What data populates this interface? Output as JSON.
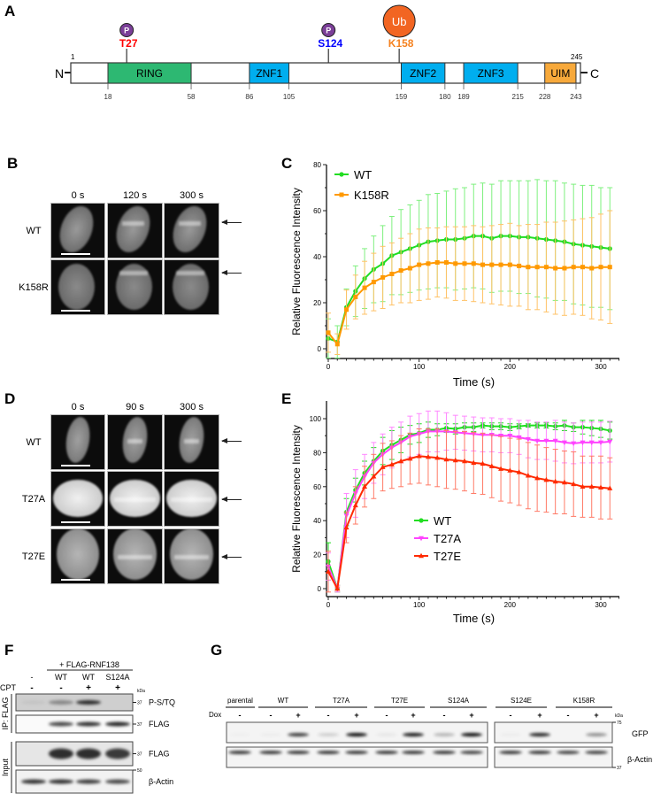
{
  "panel_labels": {
    "a": "A",
    "b": "B",
    "c": "C",
    "d": "D",
    "e": "E",
    "f": "F",
    "g": "G"
  },
  "domain_diagram": {
    "n_label": "N",
    "c_label": "C",
    "start_label": "1",
    "end_label": "245",
    "length": 245,
    "domains": [
      {
        "name": "RING",
        "start": 18,
        "end": 58,
        "color": "#2db872"
      },
      {
        "name": "ZNF1",
        "start": 86,
        "end": 105,
        "color": "#00aeef"
      },
      {
        "name": "ZNF2",
        "start": 159,
        "end": 180,
        "color": "#00aeef"
      },
      {
        "name": "ZNF3",
        "start": 189,
        "end": 215,
        "color": "#00aeef"
      },
      {
        "name": "UIM",
        "start": 228,
        "end": 243,
        "color": "#f7a93b"
      }
    ],
    "boundary_labels": [
      "18",
      "58",
      "86",
      "105",
      "159",
      "180",
      "189",
      "215",
      "228",
      "243"
    ],
    "boundary_values": [
      18,
      58,
      86,
      105,
      159,
      180,
      189,
      215,
      228,
      243
    ],
    "sites": [
      {
        "label": "T27",
        "residue": 27,
        "color": "#ff0000",
        "mod": "P",
        "mod_color": "#7b3f98"
      },
      {
        "label": "S124",
        "residue": 124,
        "color": "#0000ff",
        "mod": "P",
        "mod_color": "#7b3f98"
      },
      {
        "label": "K158",
        "residue": 158,
        "color": "#f58220",
        "mod": "Ub",
        "mod_color": "#f26522"
      }
    ]
  },
  "panel_b": {
    "headers": [
      "0 s",
      "120 s",
      "300 s"
    ],
    "rows": [
      "WT",
      "K158R"
    ]
  },
  "panel_d": {
    "headers": [
      "0 s",
      "90 s",
      "300 s"
    ],
    "rows": [
      "WT",
      "T27A",
      "T27E"
    ]
  },
  "chart_data": [
    {
      "panel": "C",
      "type": "line",
      "xlabel": "Time (s)",
      "ylabel": "Relative Fluorescence Intensity",
      "xlim": [
        0,
        310
      ],
      "ylim": [
        -4,
        80
      ],
      "xticks": [
        "0",
        "100",
        "200",
        "300"
      ],
      "xtick_values": [
        0,
        100,
        200,
        300
      ],
      "yticks": [
        "0",
        "20",
        "40",
        "60",
        "80"
      ],
      "ytick_values": [
        0,
        20,
        40,
        60,
        80
      ],
      "legend": "top-left",
      "x": [
        0,
        10,
        20,
        30,
        40,
        50,
        60,
        70,
        80,
        90,
        100,
        110,
        120,
        130,
        140,
        150,
        160,
        170,
        180,
        190,
        200,
        210,
        220,
        230,
        240,
        250,
        260,
        270,
        280,
        290,
        300,
        310
      ],
      "series": [
        {
          "name": "WT",
          "color": "#22dd22",
          "err_color": "#7ef07e",
          "marker": "circle",
          "values": [
            4.5,
            3,
            18,
            25,
            30.5,
            34.5,
            37,
            40.5,
            42,
            43.5,
            45,
            46.5,
            47,
            47.5,
            47.5,
            48,
            49,
            49,
            48,
            49,
            49,
            48.5,
            48.5,
            48,
            47.5,
            47,
            46.5,
            45.5,
            45,
            44.5,
            44,
            43.5
          ],
          "sd": [
            8.5,
            7,
            8,
            11,
            13,
            14.5,
            16.5,
            17,
            18.5,
            19,
            19.5,
            20.5,
            20.5,
            21,
            22,
            22,
            22.5,
            23,
            23.5,
            24,
            24,
            24.5,
            24.5,
            25.5,
            25.5,
            26,
            25.5,
            26,
            26,
            26.5,
            26,
            26.5
          ]
        },
        {
          "name": "K158R",
          "color": "#ff9900",
          "err_color": "#ffc266",
          "marker": "square",
          "values": [
            7,
            2,
            17,
            22.5,
            26.5,
            29,
            31,
            32.5,
            34,
            35,
            36.5,
            37,
            37.5,
            37.5,
            37,
            37,
            37,
            36.5,
            36.5,
            36.5,
            36.5,
            36,
            35.5,
            35.5,
            35.5,
            35,
            35,
            35.5,
            35.5,
            35,
            35.5,
            35.5
          ],
          "sd": [
            8.5,
            4.5,
            8.5,
            9.5,
            11.5,
            12.5,
            13.5,
            13.5,
            14,
            15,
            15.5,
            15.5,
            15,
            15.5,
            16,
            16,
            16.5,
            16.5,
            17,
            17.5,
            18,
            17.5,
            18.5,
            18.5,
            19.5,
            20,
            20.5,
            20.5,
            21,
            22,
            23,
            24.5
          ]
        }
      ]
    },
    {
      "panel": "E",
      "type": "line",
      "xlabel": "Time (s)",
      "ylabel": "Relative Fluorescence Intensity",
      "xlim": [
        0,
        310
      ],
      "ylim": [
        -4,
        110
      ],
      "xticks": [
        "0",
        "100",
        "200",
        "300"
      ],
      "xtick_values": [
        0,
        100,
        200,
        300
      ],
      "yticks": [
        "0",
        "20",
        "40",
        "60",
        "80",
        "100"
      ],
      "ytick_values": [
        0,
        20,
        40,
        60,
        80,
        100
      ],
      "legend": "center",
      "x": [
        0,
        10,
        20,
        30,
        40,
        50,
        60,
        70,
        80,
        90,
        100,
        110,
        120,
        130,
        140,
        150,
        160,
        170,
        180,
        190,
        200,
        210,
        220,
        230,
        240,
        250,
        260,
        270,
        280,
        290,
        300,
        310
      ],
      "series": [
        {
          "name": "WT",
          "color": "#22dd22",
          "err_color": "#22dd22",
          "marker": "circle",
          "values": [
            16,
            0,
            45,
            58,
            68,
            75,
            81,
            84.5,
            87.5,
            90.5,
            91.5,
            93.5,
            93.5,
            94.5,
            94,
            95,
            95,
            96,
            95.5,
            95.5,
            95,
            95.5,
            96,
            96,
            96,
            95.5,
            96,
            95,
            95,
            94.5,
            94,
            93
          ],
          "sd": [
            11,
            2,
            8,
            7,
            7,
            8,
            8,
            8.5,
            7.5,
            5.5,
            5.5,
            4.5,
            3.5,
            2.5,
            3,
            2.5,
            2.5,
            1.5,
            2,
            2,
            2,
            1.5,
            1,
            1.5,
            1.5,
            2,
            3,
            2.5,
            4,
            4.5,
            5,
            5
          ]
        },
        {
          "name": "T27A",
          "color": "#ff44ff",
          "err_color": "#ff88ff",
          "marker": "triangle-down",
          "values": [
            13,
            0,
            43,
            56,
            66,
            74,
            79,
            83,
            86,
            89.5,
            91,
            92.5,
            92.5,
            92.5,
            92,
            91.5,
            91,
            90.5,
            90.5,
            90,
            90,
            89,
            88,
            87,
            87,
            87,
            86,
            85.5,
            86,
            86,
            86,
            86.5
          ],
          "sd": [
            8,
            2,
            13,
            14,
            13,
            12,
            12,
            12,
            12,
            12,
            12,
            12,
            12,
            11,
            10,
            10,
            10,
            10,
            10,
            10,
            10,
            10,
            11,
            11,
            11,
            12,
            12,
            12,
            12,
            12,
            12,
            12
          ]
        },
        {
          "name": "T27E",
          "color": "#ff2a00",
          "err_color": "#ff7a66",
          "marker": "triangle-up",
          "values": [
            10,
            0,
            36,
            49,
            60,
            66,
            71.5,
            73,
            75,
            76.5,
            78,
            77.5,
            77,
            76,
            75.5,
            75,
            74,
            73.5,
            72,
            70.5,
            69.5,
            68.5,
            66.5,
            65,
            64,
            63,
            62.5,
            61.5,
            60,
            60,
            59.5,
            59
          ],
          "sd": [
            12,
            1,
            9,
            11,
            12,
            13,
            14,
            14,
            15,
            15,
            16,
            16.5,
            17,
            17,
            17,
            17.5,
            18,
            18,
            18.5,
            19,
            19,
            19.5,
            19.5,
            19.5,
            19,
            19,
            18.5,
            19,
            18,
            18,
            18.5,
            18
          ]
        }
      ]
    }
  ],
  "panel_f": {
    "header": "+ FLAG-RNF138",
    "lanes": [
      "-",
      "WT",
      "WT",
      "S124A"
    ],
    "cpt_label": "CPT",
    "cpt": [
      "-",
      "-",
      "+",
      "+"
    ],
    "kda_label": "kDa",
    "ip_label": "IP: FLAG",
    "input_label": "Input",
    "blots": [
      {
        "label": "P-S/TQ",
        "marker": "37",
        "bands": [
          0.05,
          0.35,
          0.8,
          0
        ],
        "bg": "#cfcfcf"
      },
      {
        "label": "FLAG",
        "marker": "37",
        "bands": [
          0,
          0.7,
          0.8,
          0.85
        ],
        "bg": "#fafafa"
      },
      {
        "label": "FLAG",
        "marker": "37",
        "bands": [
          0,
          0.8,
          0.8,
          0.75
        ],
        "bg": "#e6e6e6"
      },
      {
        "label": "β-Actin",
        "marker": "50",
        "bands": [
          0.8,
          0.8,
          0.75,
          0.7
        ],
        "bg": "#f2f2f2"
      }
    ]
  },
  "panel_g": {
    "groups": [
      "parental",
      "WT",
      "T27A",
      "T27E",
      "S124A",
      "S124E",
      "K158R"
    ],
    "dox_label": "Dox",
    "dox": [
      "-",
      "-",
      "+",
      "-",
      "+",
      "-",
      "+",
      "-",
      "+",
      "-",
      "+",
      "-",
      "+"
    ],
    "kda_label": "kDa",
    "gfp_label": "GFP",
    "actin_label": "β-Actin",
    "marker_top": "75",
    "marker_bottom": "37",
    "gfp_bands": [
      0.02,
      0.03,
      0.75,
      0.15,
      0.95,
      0.05,
      0.9,
      0.25,
      0.95,
      0.03,
      0.85,
      0,
      0.4
    ],
    "actin_bands": [
      0.85,
      0.85,
      0.85,
      0.85,
      0.85,
      0.85,
      0.85,
      0.85,
      0.8,
      0.85,
      0.85,
      0.8,
      0.8
    ]
  }
}
